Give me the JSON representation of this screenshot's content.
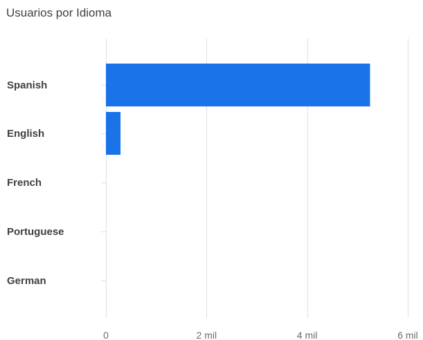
{
  "chart_data": {
    "type": "bar",
    "orientation": "horizontal",
    "title": "Usuarios por Idioma",
    "categories": [
      "Spanish",
      "English",
      "French",
      "Portuguese",
      "German"
    ],
    "values": [
      5250,
      290,
      0,
      0,
      0
    ],
    "xlim": [
      0,
      6000
    ],
    "xticks": [
      0,
      2000,
      4000,
      6000
    ],
    "xtick_labels": [
      "0",
      "2 mil",
      "4 mil",
      "6 mil"
    ],
    "grid": true,
    "legend": "none",
    "bar_color": "#1a73e8",
    "grid_color": "#e0e0e0"
  }
}
